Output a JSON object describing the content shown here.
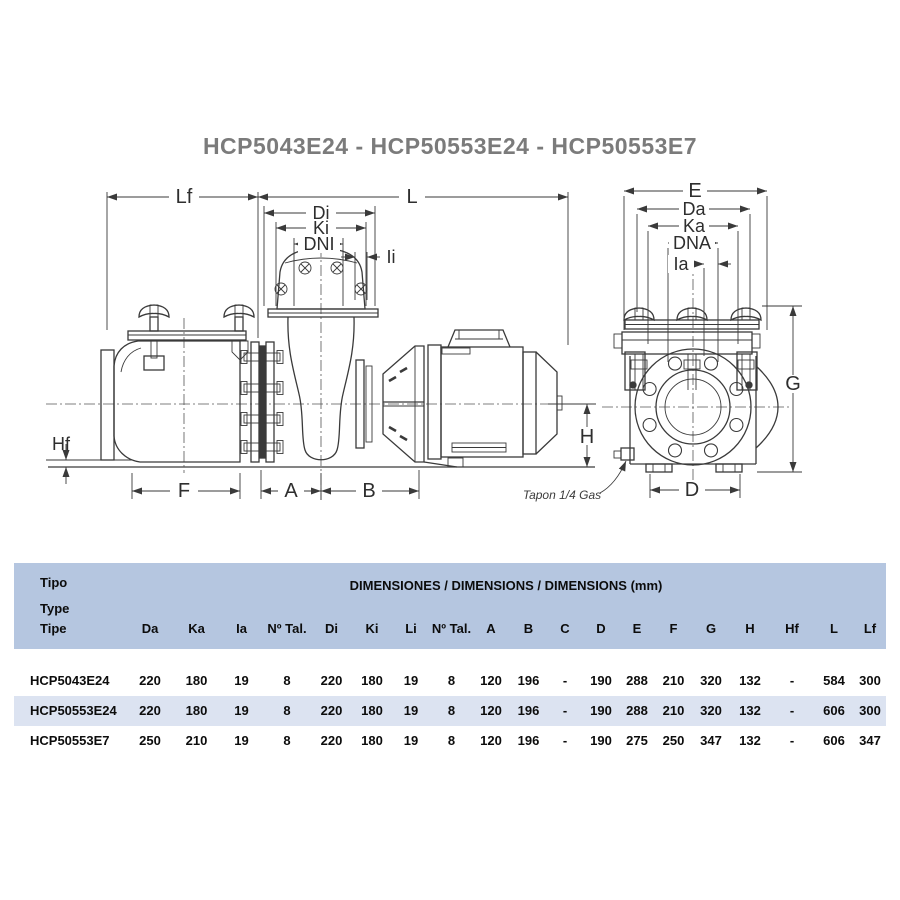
{
  "title": "HCP5043E24 - HCP50553E24 - HCP50553E7",
  "drawing": {
    "line_color": "#3a3a3a",
    "labels": {
      "lf": "Lf",
      "l": "L",
      "di": "Di",
      "ki": "Ki",
      "dni": "DNI",
      "ii": "Ii",
      "hf": "Hf",
      "f": "F",
      "a": "A",
      "b": "B",
      "h": "H",
      "e": "E",
      "da": "Da",
      "ka": "Ka",
      "dna": "DNA",
      "ia": "Ia",
      "g": "G",
      "d": "D",
      "plug_note": "Tapon 1/4 Gas"
    }
  },
  "table": {
    "colors": {
      "header_bg": "#b5c6e0",
      "highlight_bg": "#dce3f1"
    },
    "header": {
      "type_label_lines": [
        "Tipo",
        "Type",
        "Tipe"
      ],
      "dimensions_title": "DIMENSIONES / DIMENSIONS / DIMENSIONS (mm)"
    },
    "columns": [
      "Da",
      "Ka",
      "Ia",
      "Nº Tal.",
      "Di",
      "Ki",
      "Li",
      "Nº Tal.",
      "A",
      "B",
      "C",
      "D",
      "E",
      "F",
      "G",
      "H",
      "Hf",
      "L",
      "Lf"
    ],
    "rows": [
      {
        "model": "HCP5043E24",
        "highlight": false,
        "values": [
          "220",
          "180",
          "19",
          "8",
          "220",
          "180",
          "19",
          "8",
          "120",
          "196",
          "-",
          "190",
          "288",
          "210",
          "320",
          "132",
          "-",
          "584",
          "300"
        ]
      },
      {
        "model": "HCP50553E24",
        "highlight": true,
        "values": [
          "220",
          "180",
          "19",
          "8",
          "220",
          "180",
          "19",
          "8",
          "120",
          "196",
          "-",
          "190",
          "288",
          "210",
          "320",
          "132",
          "-",
          "606",
          "300"
        ]
      },
      {
        "model": "HCP50553E7",
        "highlight": false,
        "values": [
          "250",
          "210",
          "19",
          "8",
          "220",
          "180",
          "19",
          "8",
          "120",
          "196",
          "-",
          "190",
          "275",
          "250",
          "347",
          "132",
          "-",
          "606",
          "347"
        ]
      }
    ]
  }
}
